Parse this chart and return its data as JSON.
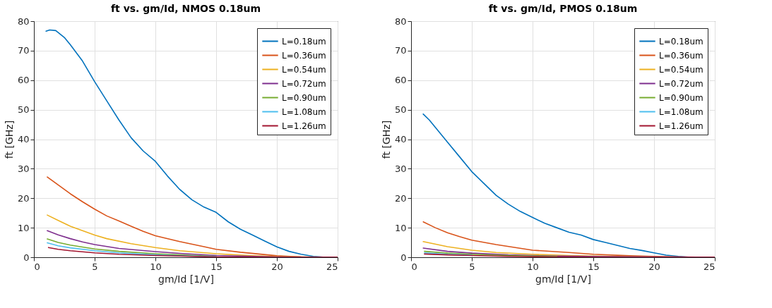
{
  "chart_data": [
    {
      "type": "line",
      "title": "ft vs. gm/Id,  NMOS 0.18um",
      "xlabel": "gm/Id [1/V]",
      "ylabel": "ft [GHz]",
      "xlim": [
        0,
        25
      ],
      "ylim": [
        0,
        80
      ],
      "xticks": [
        0,
        5,
        10,
        15,
        20,
        25
      ],
      "yticks": [
        0,
        10,
        20,
        30,
        40,
        50,
        60,
        70,
        80
      ],
      "grid": true,
      "legend": "top right",
      "marker": "none",
      "line_style": "solid",
      "series": [
        {
          "name": "L=0.18um",
          "color": "#0072bd",
          "x": [
            1.0,
            1.3,
            1.8,
            2.5,
            3,
            4,
            5,
            6,
            7,
            8,
            9,
            10,
            11,
            12,
            13,
            14,
            15,
            16,
            17,
            18,
            19,
            20,
            21,
            22,
            23,
            24,
            25
          ],
          "values": [
            76.6,
            77,
            76.8,
            74.5,
            72,
            66.5,
            59.5,
            53,
            46.5,
            40.5,
            36,
            32.5,
            27.5,
            23,
            19.5,
            17,
            15.2,
            12,
            9.5,
            7.5,
            5.5,
            3.5,
            2,
            1,
            0.3,
            0,
            0
          ]
        },
        {
          "name": "L=0.36um",
          "color": "#d95319",
          "x": [
            1.1,
            2,
            3,
            4,
            5,
            6,
            7,
            8,
            9,
            10,
            12,
            14,
            15,
            17,
            20,
            22,
            25
          ],
          "values": [
            27.2,
            24.5,
            21.5,
            18.8,
            16.3,
            14,
            12.3,
            10.5,
            8.8,
            7.3,
            5.3,
            3.6,
            2.7,
            1.7,
            0.5,
            0.1,
            0
          ]
        },
        {
          "name": "L=0.54um",
          "color": "#edb120",
          "x": [
            1.1,
            2,
            3,
            4,
            5,
            6,
            8,
            10,
            12,
            15,
            18,
            20,
            25
          ],
          "values": [
            14.3,
            12.5,
            10.5,
            9,
            7.5,
            6.3,
            4.6,
            3.3,
            2.2,
            1.2,
            0.5,
            0.2,
            0
          ]
        },
        {
          "name": "L=0.72um",
          "color": "#7e2f8e",
          "x": [
            1.1,
            2,
            3,
            4,
            5,
            7,
            10,
            12,
            15,
            20,
            25
          ],
          "values": [
            9,
            7.6,
            6.3,
            5.2,
            4.3,
            3,
            1.9,
            1.3,
            0.6,
            0.1,
            0
          ]
        },
        {
          "name": "L=0.90um",
          "color": "#77ac30",
          "x": [
            1.1,
            2,
            3,
            5,
            7,
            10,
            12,
            15
          ],
          "values": [
            6.2,
            5,
            4.1,
            2.8,
            2,
            1.2,
            0.8,
            0.3
          ]
        },
        {
          "name": "L=1.08um",
          "color": "#4dbeee",
          "x": [
            1.1,
            2,
            3,
            5,
            7,
            10,
            12,
            15
          ],
          "values": [
            4.9,
            3.9,
            3.2,
            2.2,
            1.5,
            0.8,
            0.5,
            0.2
          ]
        },
        {
          "name": "L=1.26um",
          "color": "#a2142f",
          "x": [
            1.2,
            2,
            3,
            5,
            7,
            10,
            12,
            15,
            20,
            25
          ],
          "values": [
            3.3,
            2.7,
            2.2,
            1.5,
            1,
            0.6,
            0.4,
            0.1,
            0,
            0
          ]
        }
      ]
    },
    {
      "type": "line",
      "title": "ft vs. gm/Id,  PMOS 0.18um",
      "xlabel": "gm/Id [1/V]",
      "ylabel": "ft [GHz]",
      "xlim": [
        0,
        25
      ],
      "ylim": [
        0,
        80
      ],
      "xticks": [
        0,
        5,
        10,
        15,
        20,
        25
      ],
      "yticks": [
        0,
        10,
        20,
        30,
        40,
        50,
        60,
        70,
        80
      ],
      "grid": true,
      "legend": "top right",
      "marker": "none",
      "line_style": "solid",
      "series": [
        {
          "name": "L=0.18um",
          "color": "#0072bd",
          "x": [
            1.0,
            1.5,
            2,
            3,
            4,
            5,
            6,
            7,
            8,
            9,
            10,
            11,
            12,
            13,
            14,
            15,
            16,
            17,
            18,
            19,
            20,
            21,
            22,
            23,
            25
          ],
          "values": [
            48.5,
            46.5,
            44,
            39,
            34,
            29,
            25,
            21,
            18,
            15.5,
            13.5,
            11.5,
            10,
            8.5,
            7.5,
            6,
            5,
            4,
            3,
            2.3,
            1.5,
            0.7,
            0.3,
            0,
            0
          ]
        },
        {
          "name": "L=0.36um",
          "color": "#d95319",
          "x": [
            1,
            2,
            3,
            4,
            5,
            7,
            10,
            13,
            15,
            18,
            20,
            22,
            25
          ],
          "values": [
            12,
            10,
            8.3,
            7,
            5.8,
            4.3,
            2.4,
            1.6,
            1,
            0.5,
            0.3,
            0.1,
            0
          ]
        },
        {
          "name": "L=0.54um",
          "color": "#edb120",
          "x": [
            1,
            3,
            5,
            7,
            10,
            13,
            15,
            20,
            25
          ],
          "values": [
            5.3,
            3.6,
            2.4,
            1.6,
            1,
            0.6,
            0.4,
            0.1,
            0
          ]
        },
        {
          "name": "L=0.72um",
          "color": "#7e2f8e",
          "x": [
            1,
            3,
            5,
            8,
            12,
            16,
            25
          ],
          "values": [
            3.1,
            2,
            1.4,
            0.8,
            0.4,
            0.2,
            0
          ]
        },
        {
          "name": "L=0.90um",
          "color": "#77ac30",
          "x": [
            1.1,
            3,
            5,
            8,
            12
          ],
          "values": [
            2,
            1.4,
            1,
            0.6,
            0.3
          ]
        },
        {
          "name": "L=1.08um",
          "color": "#4dbeee",
          "x": [
            1.1,
            3,
            5
          ],
          "values": [
            1.5,
            1,
            0.7
          ]
        },
        {
          "name": "L=1.26um",
          "color": "#a2142f",
          "x": [
            1.1,
            3,
            5,
            8,
            12,
            16,
            25
          ],
          "values": [
            1.1,
            0.8,
            0.6,
            0.3,
            0.1,
            0,
            0
          ]
        }
      ]
    }
  ]
}
